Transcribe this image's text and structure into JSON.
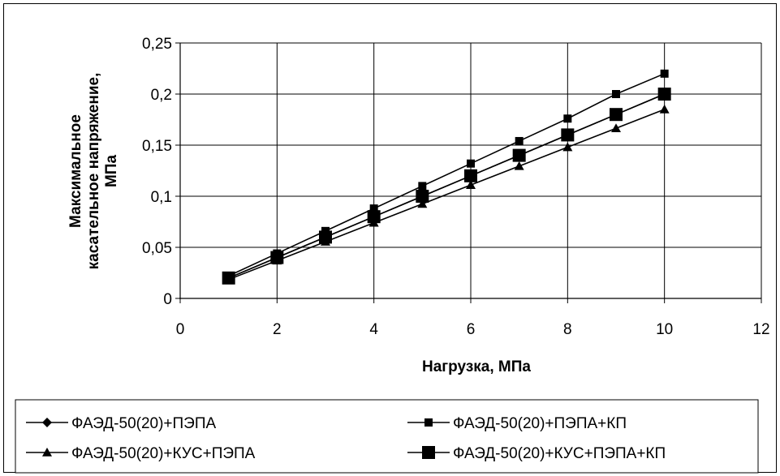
{
  "chart_data": {
    "type": "line",
    "xlabel": "Нагрузка, МПа",
    "ylabel_lines": [
      "Максимальное",
      "касательное напряжение,",
      "МПа"
    ],
    "xlim": [
      0,
      12
    ],
    "ylim": [
      0,
      0.25
    ],
    "x_ticks": [
      0,
      2,
      4,
      6,
      8,
      10,
      12
    ],
    "y_ticks": [
      0,
      0.05,
      0.1,
      0.15,
      0.2,
      0.25
    ],
    "x_tick_labels": [
      "0",
      "2",
      "4",
      "6",
      "8",
      "10",
      "12"
    ],
    "y_tick_labels": [
      "0",
      "0,05",
      "0,1",
      "0,15",
      "0,2",
      "0,25"
    ],
    "grid": true,
    "legend_position": "bottom",
    "x": [
      1,
      2,
      3,
      4,
      5,
      6,
      7,
      8,
      9,
      10
    ],
    "series": [
      {
        "name": "ФАЭД-50(20)+ПЭПА",
        "marker": "diamond",
        "values": [
          0.02,
          0.04,
          0.06,
          0.08,
          0.1,
          0.12,
          0.14,
          0.16,
          0.18,
          0.2
        ]
      },
      {
        "name": "ФАЭД-50(20)+ПЭПА+КП",
        "marker": "square-small",
        "values": [
          0.022,
          0.044,
          0.066,
          0.088,
          0.11,
          0.132,
          0.154,
          0.176,
          0.2,
          0.22
        ]
      },
      {
        "name": "ФАЭД-50(20)+КУС+ПЭПА",
        "marker": "triangle",
        "values": [
          0.0185,
          0.037,
          0.0555,
          0.074,
          0.0925,
          0.111,
          0.1295,
          0.148,
          0.1665,
          0.185
        ]
      },
      {
        "name": "ФАЭД-50(20)+КУС+ПЭПА+КП",
        "marker": "square-large",
        "values": [
          0.02,
          0.04,
          0.06,
          0.08,
          0.1,
          0.12,
          0.14,
          0.16,
          0.18,
          0.2
        ]
      }
    ],
    "colors": {
      "line": "#000000",
      "grid": "#000000",
      "background": "#ffffff"
    }
  }
}
